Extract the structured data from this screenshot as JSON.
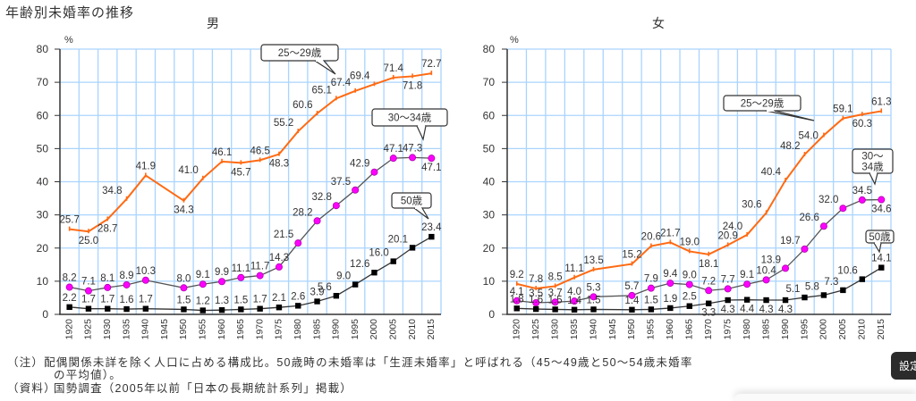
{
  "page": {
    "title": "年齢別未婚率の推移"
  },
  "chart_data": [
    {
      "type": "line",
      "title": "男",
      "ylabel": "%",
      "xlabel": "",
      "ylim": [
        0,
        80
      ],
      "yticks": [
        0,
        10,
        20,
        30,
        40,
        50,
        60,
        70,
        80
      ],
      "grid": true,
      "x": [
        "1920",
        "1925",
        "1930",
        "1935",
        "1940",
        "1945",
        "1950",
        "1955",
        "1960",
        "1965",
        "1970",
        "1975",
        "1980",
        "1985",
        "1990",
        "1995",
        "2000",
        "2005",
        "2010",
        "2015"
      ],
      "series": [
        {
          "name": "25〜29歳",
          "callout": [
            "25〜29歳"
          ],
          "color": "#ff6a13",
          "marker": "tick",
          "values": [
            25.7,
            25.0,
            28.7,
            34.8,
            41.9,
            null,
            34.3,
            41.0,
            46.1,
            45.7,
            46.5,
            48.3,
            55.2,
            60.6,
            65.1,
            67.4,
            69.4,
            71.4,
            71.8,
            72.7
          ],
          "labels": [
            "25.7",
            "25.0",
            "28.7",
            "34.8",
            "41.9",
            null,
            "34.3",
            "41.0",
            "46.1",
            "45.7",
            "46.5",
            "48.3",
            "55.2",
            "60.6",
            "65.1",
            "67.4",
            "69.4",
            "71.4",
            "71.8",
            "72.7"
          ]
        },
        {
          "name": "30〜34歳",
          "callout": [
            "30〜34歳"
          ],
          "color": "#ff00ff",
          "line_color": "#555555",
          "marker": "circle",
          "values": [
            8.2,
            7.1,
            8.1,
            8.9,
            10.3,
            null,
            8.0,
            9.1,
            9.9,
            11.1,
            11.7,
            14.3,
            21.5,
            28.2,
            32.8,
            37.5,
            42.9,
            47.1,
            47.3,
            47.1
          ],
          "labels": [
            "8.2",
            "7.1",
            "8.1",
            "8.9",
            "10.3",
            null,
            "8.0",
            "9.1",
            "9.9",
            "11.1",
            "11.7",
            "14.3",
            "21.5",
            "28.2",
            "32.8",
            "37.5",
            "42.9",
            "47.1",
            "47.3",
            "47.1"
          ]
        },
        {
          "name": "50歳",
          "callout": [
            "50歳"
          ],
          "color": "#000000",
          "line_color": "#333333",
          "marker": "square",
          "values": [
            2.2,
            1.7,
            1.7,
            1.6,
            1.7,
            null,
            1.5,
            1.2,
            1.3,
            1.5,
            1.7,
            2.1,
            2.6,
            3.9,
            5.6,
            9.0,
            12.6,
            16.0,
            20.1,
            23.4
          ],
          "labels": [
            "2.2",
            "1.7",
            "1.7",
            "1.6",
            "1.7",
            null,
            "1.5",
            "1.2",
            "1.3",
            "1.5",
            "1.7",
            "2.1",
            "2.6",
            "3.9",
            "5.6",
            "9.0",
            "12.6",
            "16.0",
            "20.1",
            "23.4"
          ]
        }
      ]
    },
    {
      "type": "line",
      "title": "女",
      "ylabel": "%",
      "xlabel": "",
      "ylim": [
        0,
        80
      ],
      "yticks": [
        0,
        10,
        20,
        30,
        40,
        50,
        60,
        70,
        80
      ],
      "grid": true,
      "x": [
        "1920",
        "1925",
        "1930",
        "1935",
        "1940",
        "1945",
        "1950",
        "1955",
        "1960",
        "1965",
        "1970",
        "1975",
        "1980",
        "1985",
        "1990",
        "1995",
        "2000",
        "2005",
        "2010",
        "2015"
      ],
      "series": [
        {
          "name": "25〜29歳",
          "callout": [
            "25〜29歳"
          ],
          "color": "#ff6a13",
          "marker": "tick",
          "values": [
            9.2,
            7.8,
            8.5,
            11.1,
            13.5,
            null,
            15.2,
            20.6,
            21.7,
            19.0,
            18.1,
            20.9,
            24.0,
            30.6,
            40.4,
            48.2,
            54.0,
            59.1,
            60.3,
            61.3
          ],
          "labels": [
            "9.2",
            "7.8",
            "8.5",
            "11.1",
            "13.5",
            null,
            "15.2",
            "20.6",
            "21.7",
            "19.0",
            "18.1",
            "20.9",
            "24.0",
            "30.6",
            "40.4",
            "48.2",
            "54.0",
            "59.1",
            "60.3",
            "61.3"
          ]
        },
        {
          "name": "30〜34歳",
          "callout": [
            "30〜",
            "34歳"
          ],
          "color": "#ff00ff",
          "line_color": "#555555",
          "marker": "circle",
          "values": [
            4.1,
            3.5,
            3.7,
            4.0,
            5.3,
            null,
            5.7,
            7.9,
            9.4,
            9.0,
            7.2,
            7.7,
            9.1,
            10.4,
            13.9,
            19.7,
            26.6,
            32.0,
            34.5,
            34.6
          ],
          "labels": [
            "4.1",
            "3.5",
            "3.7",
            "4.0",
            "5.3",
            null,
            "5.7",
            "7.9",
            "9.4",
            "9.0",
            "7.2",
            "7.7",
            "9.1",
            "10.4",
            "13.9",
            "19.7",
            "26.6",
            "32.0",
            "34.5",
            "34.6"
          ]
        },
        {
          "name": "50歳",
          "callout": [
            "50歳"
          ],
          "color": "#000000",
          "line_color": "#333333",
          "marker": "square",
          "values": [
            1.8,
            1.6,
            1.5,
            1.4,
            1.5,
            null,
            1.4,
            1.5,
            1.9,
            2.5,
            3.3,
            4.3,
            4.4,
            4.3,
            4.3,
            5.1,
            5.8,
            7.3,
            10.6,
            14.1
          ],
          "labels": [
            "1.8",
            "1.6",
            "1.5",
            "1.4",
            "1.5",
            null,
            "1.4",
            "1.5",
            "1.9",
            "2.5",
            "3.3",
            "4.3",
            "4.4",
            "4.3",
            "4.3",
            "5.1",
            "5.8",
            "7.3",
            "10.6",
            "14.1"
          ]
        }
      ]
    }
  ],
  "notes": {
    "note_label": "（注）",
    "note_text_1": "配偶関係未詳を除く人口に占める構成比。50歳時の未婚率は「生涯未婚率」と呼ばれる（45〜49歳と50〜54歳未婚率",
    "note_text_2": "の平均値）。",
    "source_label": "（資料）",
    "source_text": "国勢調査（2005年以前「日本の長期統計系列」掲載）"
  },
  "settings_button": {
    "label": "設定"
  }
}
